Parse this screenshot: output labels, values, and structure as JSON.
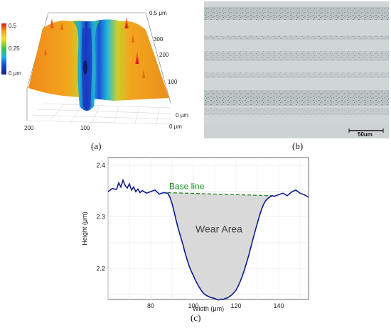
{
  "panels": {
    "a": {
      "caption": "(a)",
      "colorbar_ticks": [
        "0.5",
        "0.25",
        "0 μm"
      ],
      "z_axis_label": "0.5 μm",
      "y_axis_ticks": [
        "300",
        "200",
        "100",
        "0 μm"
      ],
      "x_axis_ticks": [
        "200",
        "100",
        "0 μm"
      ],
      "colors": {
        "high": "#d7191c",
        "mid": "#f5a21b",
        "low": "#1a4fd6"
      }
    },
    "b": {
      "caption": "(b)",
      "scale_bar_label": "50um"
    },
    "c": {
      "caption": "(c)"
    }
  },
  "chart_data": {
    "type": "area",
    "title": "",
    "xlabel": "Width (μm)",
    "ylabel": "Height (μm)",
    "xlim": [
      60,
      154
    ],
    "ylim": [
      2.14,
      2.415
    ],
    "xticks": [
      80,
      100,
      120,
      140
    ],
    "yticks": [
      2.2,
      2.3,
      2.4
    ],
    "grid": true,
    "annotations": {
      "baseline_label": "Base line",
      "area_label": "Wear Area"
    },
    "colors": {
      "profile": "#101a8c",
      "baseline": "#1e8a1e",
      "area_fill": "#d9d9d9"
    },
    "baseline": {
      "x": [
        88,
        137
      ],
      "y": [
        2.347,
        2.341
      ]
    },
    "series": [
      {
        "x": [
          60,
          62,
          64,
          65,
          66,
          67,
          68,
          69,
          70,
          71,
          72,
          73,
          74,
          75,
          76,
          78,
          80,
          82,
          84,
          86,
          88,
          89,
          90,
          91,
          92,
          93,
          94,
          95,
          96,
          97,
          98,
          99,
          100,
          101,
          102,
          103,
          104,
          105,
          106,
          107,
          108,
          109,
          110,
          111,
          112,
          113,
          114,
          115,
          116,
          117,
          118,
          119,
          120,
          121,
          122,
          123,
          124,
          125,
          126,
          127,
          128,
          129,
          130,
          131,
          132,
          133,
          134,
          135,
          136,
          137,
          138,
          140,
          142,
          144,
          146,
          148,
          150,
          152,
          154
        ],
        "y": [
          2.349,
          2.355,
          2.353,
          2.366,
          2.358,
          2.371,
          2.361,
          2.356,
          2.364,
          2.352,
          2.358,
          2.349,
          2.354,
          2.347,
          2.351,
          2.346,
          2.349,
          2.352,
          2.344,
          2.347,
          2.346,
          2.338,
          2.326,
          2.31,
          2.292,
          2.276,
          2.262,
          2.248,
          2.232,
          2.218,
          2.205,
          2.195,
          2.186,
          2.177,
          2.169,
          2.162,
          2.156,
          2.151,
          2.148,
          2.146,
          2.144,
          2.143,
          2.142,
          2.14,
          2.139,
          2.141,
          2.14,
          2.142,
          2.143,
          2.146,
          2.149,
          2.153,
          2.158,
          2.166,
          2.175,
          2.186,
          2.198,
          2.212,
          2.226,
          2.242,
          2.258,
          2.273,
          2.288,
          2.302,
          2.315,
          2.325,
          2.332,
          2.336,
          2.339,
          2.341,
          2.34,
          2.343,
          2.346,
          2.341,
          2.348,
          2.352,
          2.346,
          2.343,
          2.338
        ]
      }
    ]
  }
}
